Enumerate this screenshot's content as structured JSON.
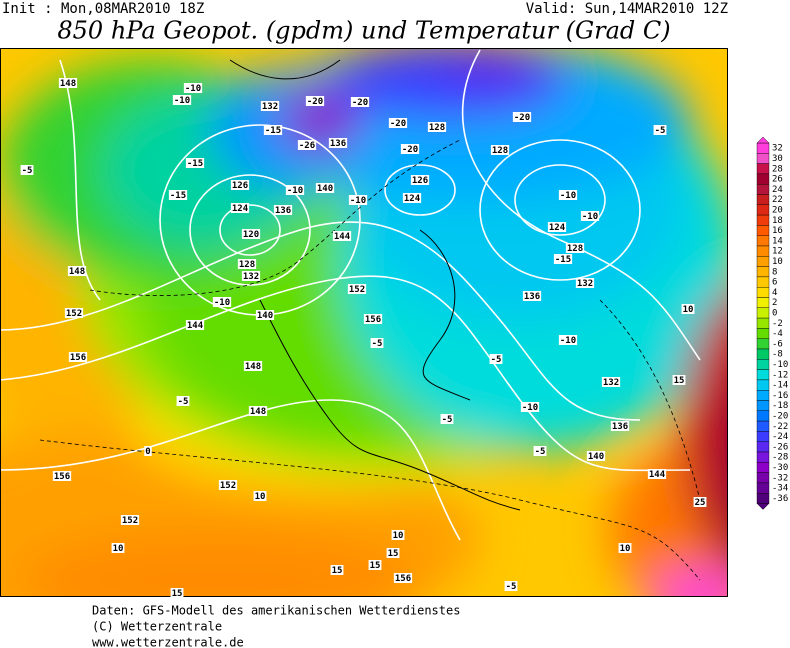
{
  "header": {
    "init": "Init : Mon,08MAR2010 18Z",
    "valid": "Valid: Sun,14MAR2010 12Z",
    "title": "850 hPa Geopot. (gpdm) und Temperatur (Grad C)"
  },
  "colorbar": {
    "values": [
      32,
      30,
      28,
      26,
      24,
      22,
      20,
      18,
      16,
      14,
      12,
      10,
      8,
      6,
      4,
      2,
      0,
      -2,
      -4,
      -6,
      -8,
      -10,
      -12,
      -14,
      -16,
      -18,
      -20,
      -22,
      -24,
      -26,
      -28,
      -30,
      -32,
      -34,
      -36
    ],
    "colors": [
      "#ff3cdc",
      "#f050c8",
      "#c8104a",
      "#a00030",
      "#b4143c",
      "#c81e1e",
      "#dc2814",
      "#f03c0a",
      "#ff5a00",
      "#ff7800",
      "#ff8c00",
      "#ffa000",
      "#ffb400",
      "#ffc800",
      "#ffdc00",
      "#f0f000",
      "#c8f000",
      "#96e600",
      "#64dc00",
      "#32d232",
      "#00c864",
      "#00d2a0",
      "#00dcdc",
      "#00c8f0",
      "#00aaff",
      "#0096ff",
      "#0078ff",
      "#1e5aff",
      "#3c3cff",
      "#5a28f0",
      "#7814dc",
      "#8c00c8",
      "#7800aa",
      "#640096",
      "#500078"
    ]
  },
  "map_labels": [
    148,
    -10,
    -10,
    132,
    -20,
    -20,
    -20,
    -20,
    -5,
    -15,
    -26,
    136,
    -20,
    128,
    128,
    -5,
    -15,
    -15,
    126,
    -10,
    140,
    -10,
    126,
    124,
    -10,
    124,
    136,
    -10,
    124,
    120,
    144,
    128,
    -15,
    148,
    128,
    132,
    152,
    136,
    132,
    -10,
    152,
    140,
    10,
    156,
    144,
    -5,
    -10,
    156,
    148,
    -5,
    -5,
    132,
    15,
    148,
    -10,
    -5,
    136,
    0,
    -5,
    140,
    156,
    152,
    10,
    144,
    152,
    10,
    10,
    15,
    25,
    10,
    15,
    15,
    156,
    -5,
    15
  ],
  "footer": {
    "line1": "Daten: GFS-Modell des amerikanischen Wetterdienstes",
    "line2": "(C) Wetterzentrale",
    "line3": "www.wetterzentrale.de"
  }
}
